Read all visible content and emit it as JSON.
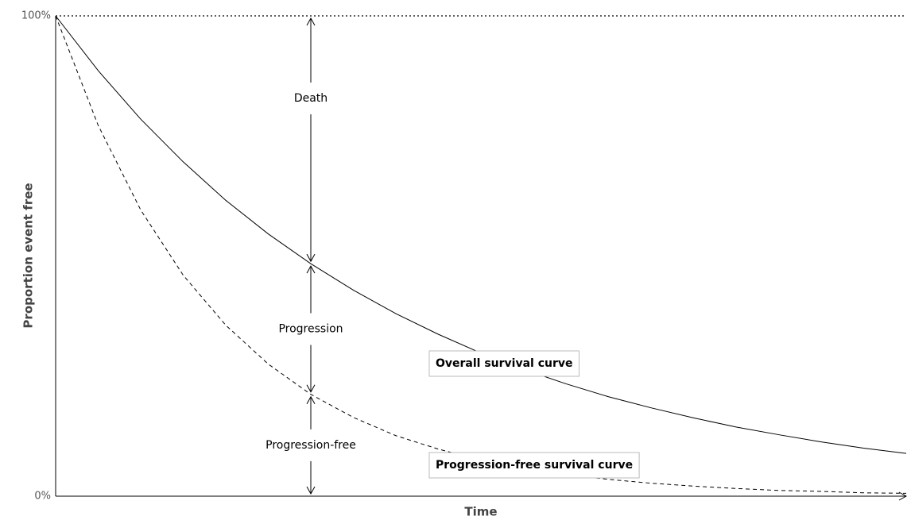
{
  "chart_data": {
    "type": "line",
    "xlabel": "Time",
    "ylabel": "Proportion event free",
    "x": [
      0,
      0.5,
      1,
      1.5,
      2,
      2.5,
      3,
      3.5,
      4,
      4.5,
      5,
      5.5,
      6,
      6.5,
      7,
      7.5,
      8,
      8.5,
      9,
      9.5,
      10
    ],
    "xlim": [
      0,
      10
    ],
    "ylim": [
      0,
      100
    ],
    "yticks": [
      {
        "value": 0,
        "label": "0%"
      },
      {
        "value": 100,
        "label": "100%"
      }
    ],
    "series": [
      {
        "name": "Overall survival curve",
        "color": "#000000",
        "style": "solid",
        "values": [
          100,
          88.6,
          78.5,
          69.6,
          61.6,
          54.6,
          48.4,
          42.9,
          38.0,
          33.7,
          29.8,
          26.4,
          23.4,
          20.7,
          18.4,
          16.3,
          14.4,
          12.8,
          11.3,
          10.0,
          8.9
        ]
      },
      {
        "name": "Progression-free survival curve",
        "color": "#000000",
        "style": "dashed",
        "values": [
          100,
          77.2,
          59.6,
          46.0,
          35.6,
          27.5,
          21.2,
          16.4,
          12.6,
          9.8,
          7.5,
          5.8,
          4.5,
          3.5,
          2.7,
          2.1,
          1.6,
          1.2,
          1.0,
          0.7,
          0.6
        ]
      }
    ],
    "annotations": [
      "Death",
      "Progression",
      "Progression-free"
    ]
  }
}
